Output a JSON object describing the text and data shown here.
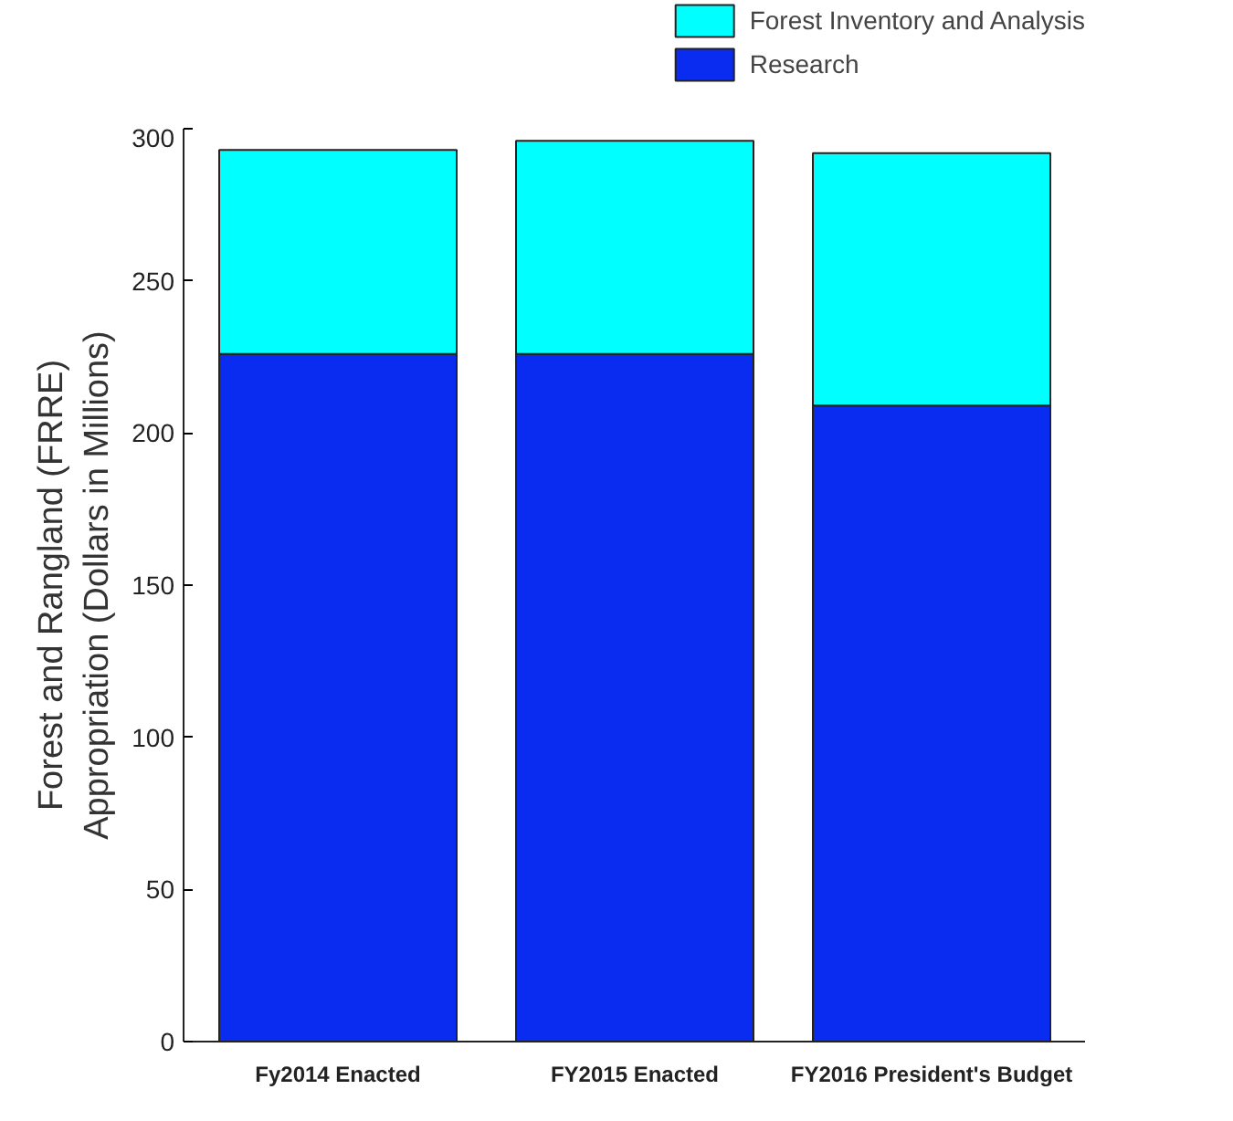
{
  "chart_data": {
    "type": "bar",
    "stacked": true,
    "ylabel": "Forest and Rangland (FRRE)\nAppropriation (Dollars in Millions)",
    "categories": [
      "Fy2014 Enacted",
      "FY2015 Enacted",
      "FY2016 President's Budget"
    ],
    "series": [
      {
        "name": "Research",
        "color": "#0a2cf0",
        "values": [
          226,
          226,
          209
        ]
      },
      {
        "name": "Forest Inventory and Analysis",
        "color": "#00ffff",
        "values": [
          67,
          70,
          83
        ]
      }
    ],
    "ylim": [
      0,
      300
    ],
    "yticks": [
      0,
      50,
      100,
      150,
      200,
      250,
      300
    ],
    "legend": "top right",
    "grid": false
  }
}
